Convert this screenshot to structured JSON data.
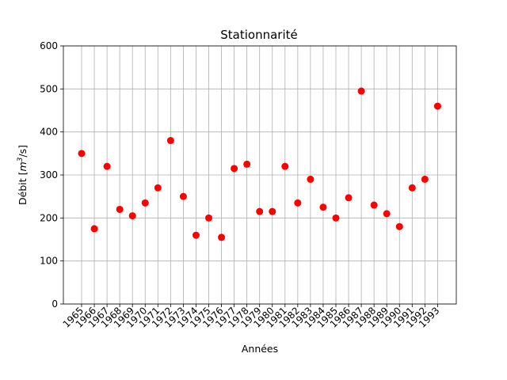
{
  "chart_data": {
    "type": "scatter",
    "title": "Stationnarité",
    "xlabel": "Années",
    "ylabel_main": "Débit [",
    "ylabel_unit_base": "m",
    "ylabel_unit_exp": "3",
    "ylabel_unit_tail": "/s]",
    "ylim": [
      0,
      600
    ],
    "yticks": [
      0,
      100,
      200,
      300,
      400,
      500,
      600
    ],
    "grid": true,
    "marker_color": "#ff0000",
    "x": [
      "1965",
      "1966",
      "1967",
      "1968",
      "1969",
      "1970",
      "1971",
      "1972",
      "1973",
      "1974",
      "1975",
      "1976",
      "1977",
      "1978",
      "1979",
      "1980",
      "1981",
      "1982",
      "1983",
      "1984",
      "1985",
      "1986",
      "1987",
      "1988",
      "1989",
      "1990",
      "1991",
      "1992",
      "1993"
    ],
    "y": [
      350,
      175,
      320,
      220,
      205,
      235,
      270,
      380,
      250,
      160,
      200,
      155,
      315,
      325,
      215,
      215,
      320,
      235,
      290,
      225,
      200,
      247,
      495,
      230,
      210,
      180,
      270,
      290,
      460
    ]
  }
}
